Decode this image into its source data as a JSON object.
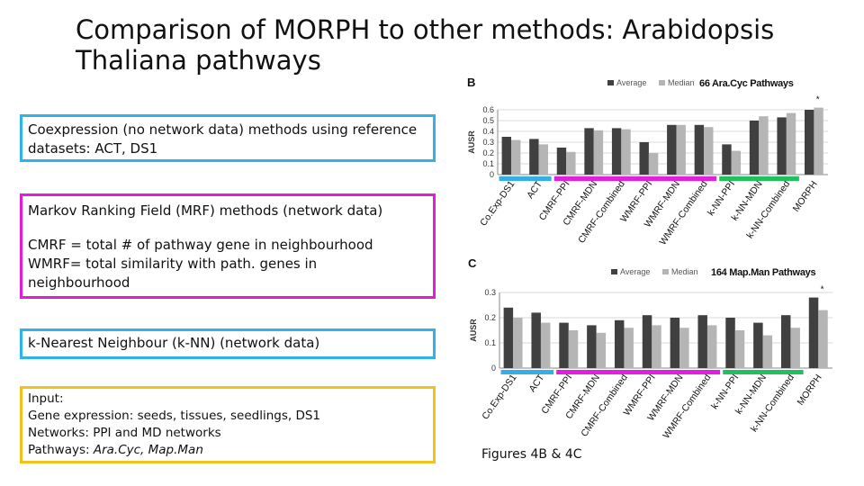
{
  "slide": {
    "title": "Comparison of MORPH to other methods: Arabidopsis Thaliana pathways",
    "box1": {
      "text": "Coexpression (no network data) methods using reference datasets: ACT, DS1"
    },
    "box2": {
      "line1": "Markov Ranking Field (MRF) methods (network data)",
      "line2": "CMRF = total # of pathway gene in neighbourhood",
      "line3": "WMRF= total similarity with path. genes in",
      "line4": "neighbourhood"
    },
    "box3": {
      "text": "k-Nearest Neighbour (k-NN) (network data)"
    },
    "box4": {
      "line1": "Input:",
      "line2": "Gene expression: seeds, tissues, seedlings, DS1",
      "line3": "Networks: PPI and MD networks",
      "line4_prefix": "Pathways: ",
      "line4_italic": "Ara.Cyc, Map.Man"
    },
    "caption": "Figures 4B & 4C"
  },
  "chart_data": [
    {
      "type": "bar",
      "panel_label": "B",
      "title": "66 Ara.Cyc Pathways",
      "ylabel": "AUSR",
      "ylim": [
        0,
        0.6
      ],
      "yticks": [
        "0",
        "0.1",
        "0.2",
        "0.3",
        "0.4",
        "0.5",
        "0.6"
      ],
      "categories": [
        "Co.Exp-DS1",
        "ACT",
        "CMRF-PPI",
        "CMRF-MDN",
        "CMRF-Combined",
        "WMRF-PPI",
        "WMRF-MDN",
        "WMRF-Combined",
        "k-NN-PPI",
        "k-NN-MDN",
        "k-NN-Combined",
        "MORPH"
      ],
      "series": [
        {
          "name": "Average",
          "values": [
            0.35,
            0.33,
            0.25,
            0.43,
            0.43,
            0.3,
            0.46,
            0.46,
            0.28,
            0.5,
            0.53,
            0.6
          ]
        },
        {
          "name": "Median",
          "values": [
            0.32,
            0.28,
            0.21,
            0.41,
            0.42,
            0.2,
            0.46,
            0.44,
            0.22,
            0.54,
            0.57,
            0.62
          ]
        }
      ],
      "legend": "top",
      "significance_mark": "*",
      "group_bars": [
        {
          "color": "#35aee5",
          "from": 0,
          "to": 1
        },
        {
          "color": "#e41ee0",
          "from": 2,
          "to": 7
        },
        {
          "color": "#1fc15c",
          "from": 8,
          "to": 10
        }
      ],
      "colors": {
        "average": "#404040",
        "median": "#b5b5b5"
      }
    },
    {
      "type": "bar",
      "panel_label": "C",
      "title": "164 Map.Man Pathways",
      "ylabel": "AUSR",
      "ylim": [
        0,
        0.3
      ],
      "yticks": [
        "0",
        "0.1",
        "0.2",
        "0.3"
      ],
      "categories": [
        "Co.Exp-DS1",
        "ACT",
        "CMRF-PPI",
        "CMRF-MDN",
        "CMRF-Combined",
        "WMRF-PPI",
        "WMRF-MDN",
        "WMRF-Combined",
        "k-NN-PPI",
        "k-NN-MDN",
        "k-NN-Combined",
        "MORPH"
      ],
      "series": [
        {
          "name": "Average",
          "values": [
            0.24,
            0.22,
            0.18,
            0.17,
            0.19,
            0.21,
            0.2,
            0.21,
            0.2,
            0.18,
            0.21,
            0.28
          ]
        },
        {
          "name": "Median",
          "values": [
            0.2,
            0.18,
            0.15,
            0.14,
            0.16,
            0.17,
            0.16,
            0.17,
            0.15,
            0.13,
            0.16,
            0.23
          ]
        }
      ],
      "legend": "top",
      "significance_mark": "*",
      "group_bars": [
        {
          "color": "#35aee5",
          "from": 0,
          "to": 1
        },
        {
          "color": "#e41ee0",
          "from": 2,
          "to": 7
        },
        {
          "color": "#1fc15c",
          "from": 8,
          "to": 10
        }
      ],
      "colors": {
        "average": "#404040",
        "median": "#b5b5b5"
      }
    }
  ]
}
